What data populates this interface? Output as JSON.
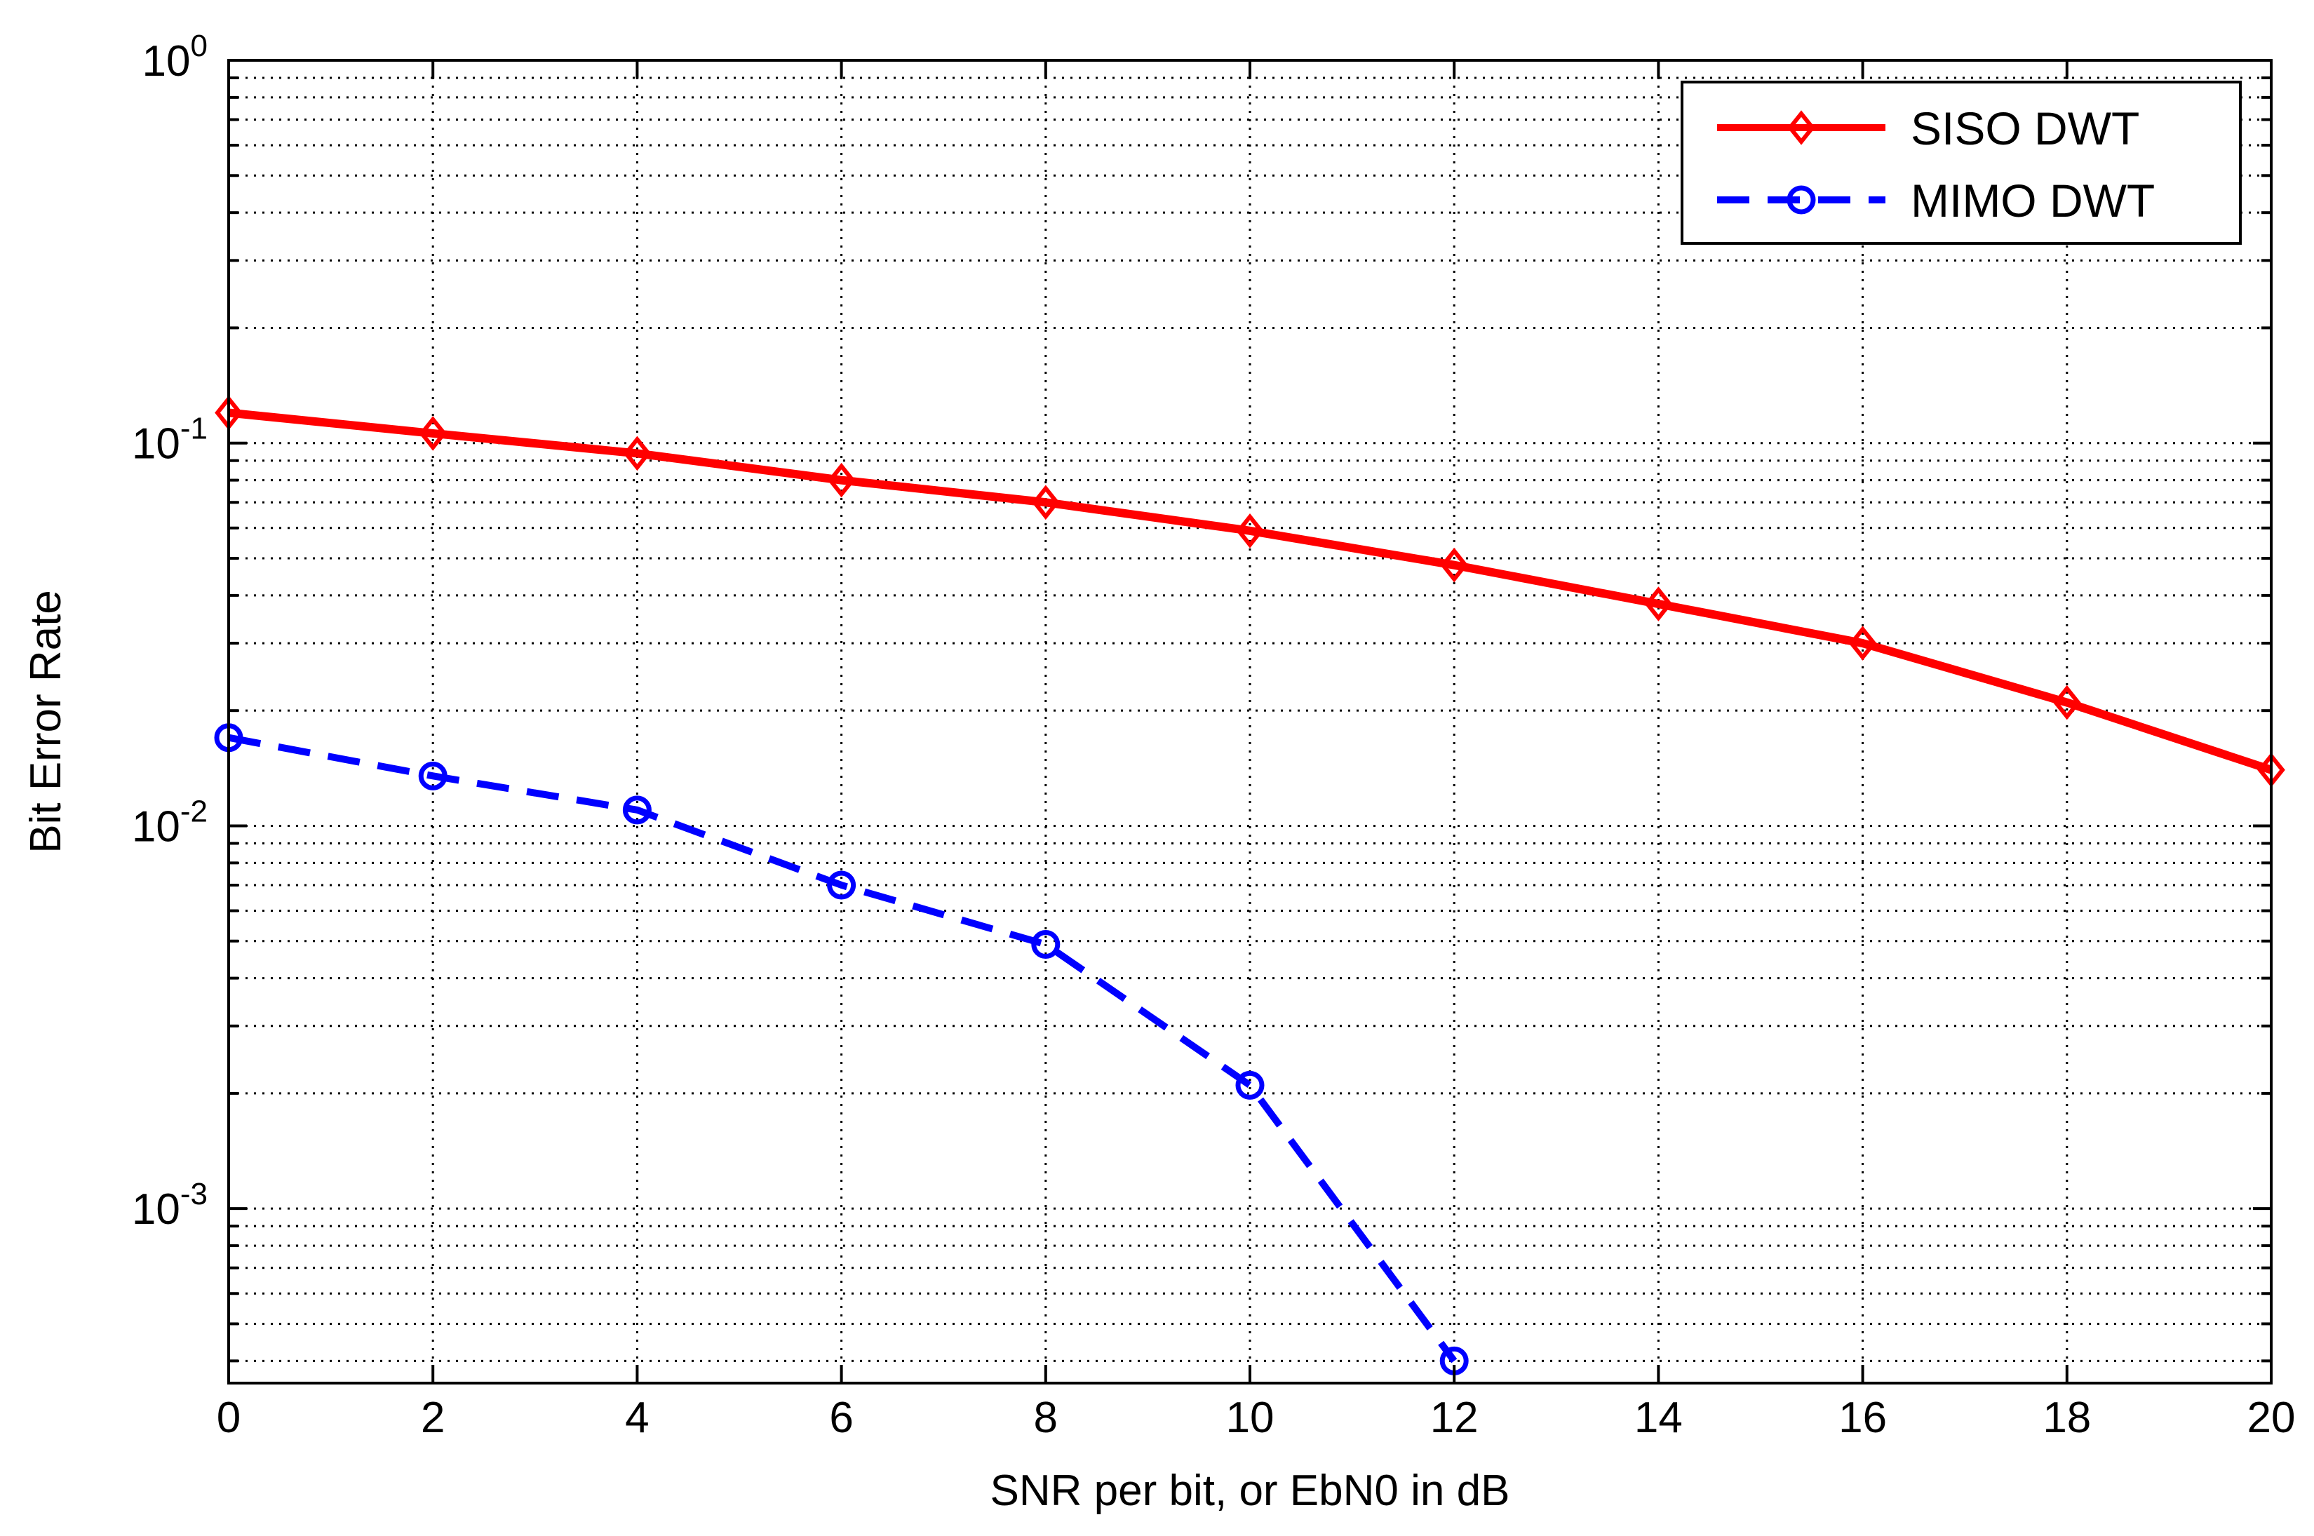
{
  "chart_data": {
    "type": "line",
    "title": "",
    "xlabel": "SNR per bit, or EbN0 in dB",
    "ylabel": "Bit Error Rate",
    "xlim": [
      0,
      20
    ],
    "ylim": [
      0.00035,
      1
    ],
    "yscale": "log",
    "grid": true,
    "legend_position": "top-right",
    "x_ticks": [
      "0",
      "2",
      "4",
      "6",
      "8",
      "10",
      "12",
      "14",
      "16",
      "18",
      "20"
    ],
    "y_ticks": [
      {
        "base": "10",
        "exp": "0"
      },
      {
        "base": "10",
        "exp": "-1"
      },
      {
        "base": "10",
        "exp": "-2"
      },
      {
        "base": "10",
        "exp": "-3"
      }
    ],
    "series": [
      {
        "name": "SISO DWT",
        "color": "#ff0000",
        "style": "solid",
        "marker": "diamond",
        "x": [
          0,
          2,
          4,
          6,
          8,
          10,
          12,
          14,
          16,
          18,
          20
        ],
        "values": [
          0.12,
          0.106,
          0.094,
          0.08,
          0.07,
          0.059,
          0.048,
          0.038,
          0.03,
          0.021,
          0.014
        ]
      },
      {
        "name": "MIMO DWT",
        "color": "#0000ff",
        "style": "dashed",
        "marker": "circle",
        "x": [
          0,
          2,
          4,
          6,
          8,
          10,
          12
        ],
        "values": [
          0.017,
          0.0135,
          0.011,
          0.007,
          0.0049,
          0.0021,
          0.0004
        ]
      }
    ]
  }
}
